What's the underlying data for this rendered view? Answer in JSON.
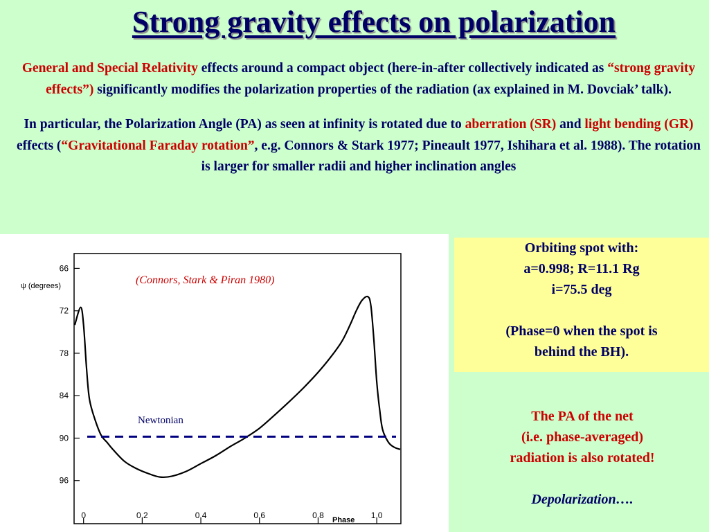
{
  "slide": {
    "title": "Strong gravity effects on polarization",
    "intro_p1": {
      "r1": "General and Special Relativity",
      "t1": " effects around a compact object (here-in-after collectively indicated as ",
      "r2": "“strong gravity effects”)",
      "t2": " significantly modifies the polarization properties of the radiation (ax explained in M. Dovciak’ talk)."
    },
    "intro_p2": {
      "t1": "In particular, the Polarization Angle (PA) as seen at infinity is rotated due to ",
      "r1": "aberration (SR)",
      "t2": " and ",
      "r2": "light bending (GR)",
      "t3": "  effects (",
      "r3": "“Gravitational Faraday rotation”",
      "t4": ", e.g. Connors & Stark 1977; Pineault 1977, Ishihara et al. 1988). The rotation is larger for smaller radii and higher inclination angles"
    },
    "info_box": {
      "line1": "Orbiting spot with:",
      "line2": "a=0.998; R=11.1 Rg",
      "line3": "i=75.5 deg",
      "line4": "(Phase=0 when the spot is",
      "line5": "behind the BH)."
    },
    "conclusion": {
      "line1": "The PA of the net",
      "line2": "(i.e. phase-averaged)",
      "line3": "radiation is also rotated!",
      "line4": "Depolarization…."
    },
    "colors": {
      "background": "#ccffcc",
      "text": "#000066",
      "emphasis": "#cc0000",
      "highlight_box": "#ffff99"
    }
  },
  "chart_data": {
    "type": "line",
    "xlabel": "Phase",
    "ylabel": "ψ (degrees)",
    "citation": "(Connors, Stark & Piran 1980)",
    "xlim": [
      -0.03,
      1.08
    ],
    "ylim": [
      64,
      102
    ],
    "y_inverted": true,
    "x_ticks": [
      0,
      0.2,
      0.4,
      0.6,
      0.8,
      1.0
    ],
    "x_tick_labels": [
      "0",
      "0.2",
      "0.4",
      "0.6",
      "0.8",
      "1.0"
    ],
    "y_ticks": [
      66,
      72,
      78,
      84,
      90,
      96
    ],
    "y_tick_labels": [
      "66",
      "72",
      "78",
      "84",
      "90",
      "96"
    ],
    "series": [
      {
        "style": "solid",
        "color": "#000000",
        "x": [
          -0.03,
          -0.01,
          0.0,
          0.01,
          0.02,
          0.04,
          0.06,
          0.08,
          0.1,
          0.14,
          0.18,
          0.22,
          0.26,
          0.3,
          0.35,
          0.4,
          0.45,
          0.5,
          0.55,
          0.6,
          0.65,
          0.7,
          0.75,
          0.8,
          0.84,
          0.88,
          0.91,
          0.93,
          0.95,
          0.97,
          0.98,
          0.99,
          1.0,
          1.01,
          1.02,
          1.04,
          1.06,
          1.08
        ],
        "y": [
          74.0,
          71.5,
          74.0,
          80.0,
          84.5,
          87.5,
          89.6,
          90.6,
          91.6,
          93.3,
          94.3,
          95.0,
          95.5,
          95.4,
          94.7,
          93.6,
          92.5,
          91.2,
          90.0,
          88.6,
          86.8,
          84.9,
          82.9,
          80.7,
          78.7,
          76.4,
          73.9,
          72.0,
          70.5,
          70.0,
          71.3,
          76.0,
          82.0,
          86.0,
          88.8,
          90.6,
          91.3,
          91.6
        ]
      },
      {
        "name": "Newtonian",
        "style": "dashed",
        "color": "#000080",
        "x": [
          -0.03,
          1.08
        ],
        "y": [
          89.8,
          89.8
        ]
      }
    ]
  }
}
